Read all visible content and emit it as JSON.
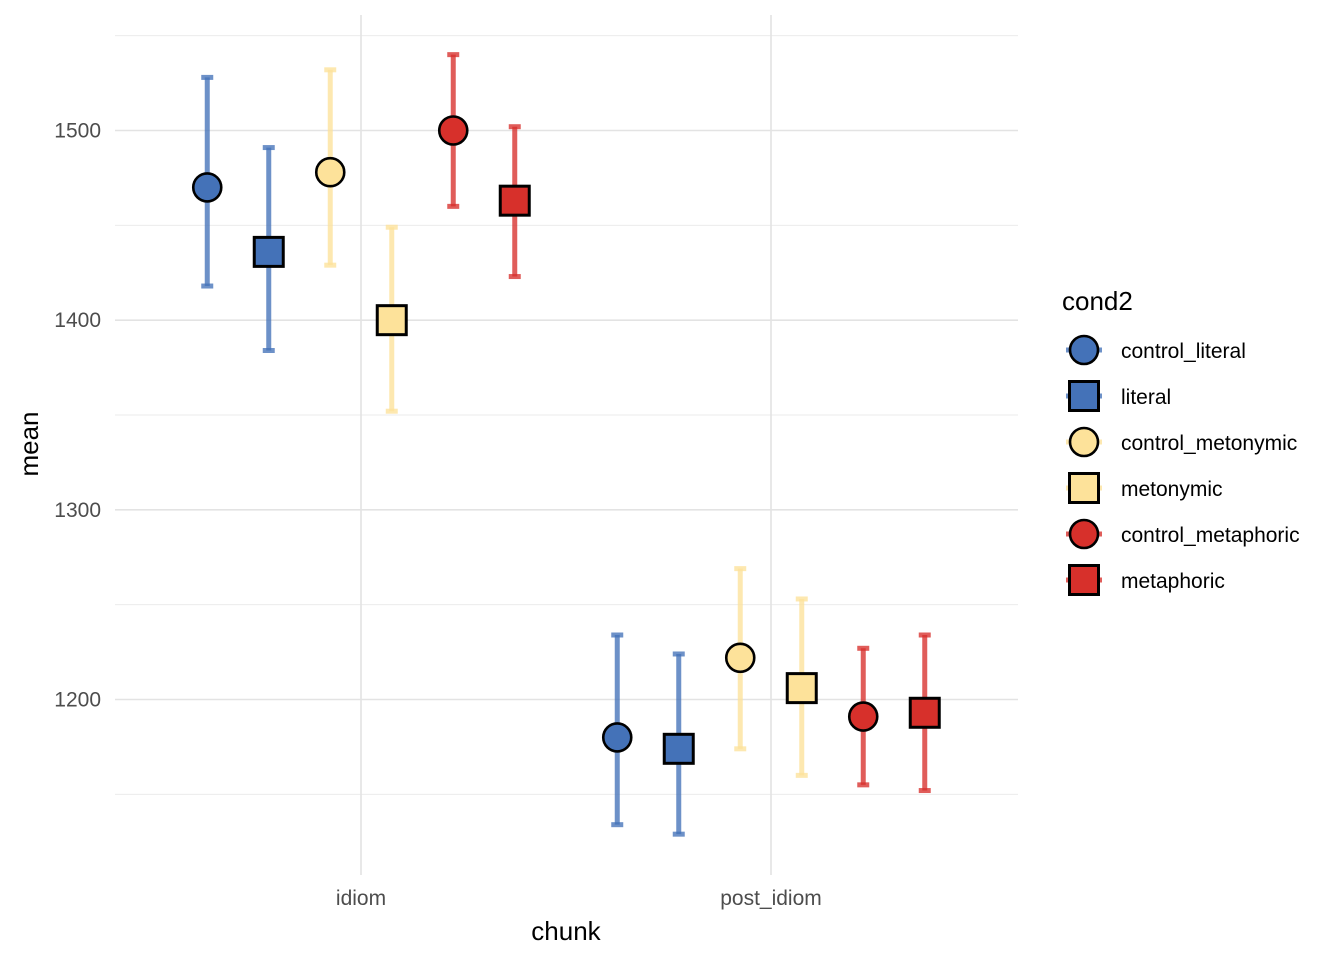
{
  "chart_data": {
    "type": "scatter",
    "variant": "point-range with error bars",
    "xlabel": "chunk",
    "ylabel": "mean",
    "categories": [
      "idiom",
      "post_idiom"
    ],
    "y_ticks": [
      1200,
      1300,
      1400,
      1500
    ],
    "ylim": [
      1120,
      1560
    ],
    "grid": true,
    "legend_position": "right",
    "legend_title": "cond2",
    "series": [
      {
        "name": "control_literal",
        "shape": "circle",
        "color": "#4472b8",
        "values": [
          1470,
          1180
        ],
        "lower": [
          1418,
          1134
        ],
        "upper": [
          1528,
          1234
        ]
      },
      {
        "name": "literal",
        "shape": "square",
        "color": "#4472b8",
        "values": [
          1436,
          1174
        ],
        "lower": [
          1384,
          1129
        ],
        "upper": [
          1491,
          1224
        ]
      },
      {
        "name": "control_metonymic",
        "shape": "circle",
        "color": "#fde29a",
        "values": [
          1478,
          1222
        ],
        "lower": [
          1429,
          1174
        ],
        "upper": [
          1532,
          1269
        ]
      },
      {
        "name": "metonymic",
        "shape": "square",
        "color": "#fde29a",
        "values": [
          1400,
          1206
        ],
        "lower": [
          1352,
          1160
        ],
        "upper": [
          1449,
          1253
        ]
      },
      {
        "name": "control_metaphoric",
        "shape": "circle",
        "color": "#d7302b",
        "values": [
          1500,
          1191
        ],
        "lower": [
          1460,
          1155
        ],
        "upper": [
          1540,
          1227
        ]
      },
      {
        "name": "metaphoric",
        "shape": "square",
        "color": "#d7302b",
        "values": [
          1463,
          1193
        ],
        "lower": [
          1423,
          1152
        ],
        "upper": [
          1502,
          1234
        ]
      }
    ]
  }
}
